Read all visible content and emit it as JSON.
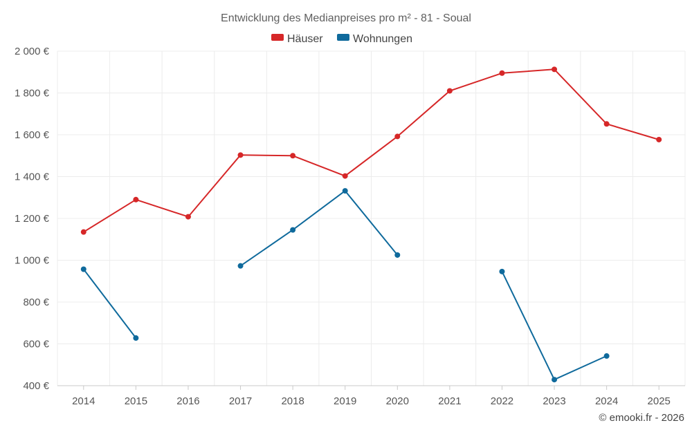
{
  "chart_data": {
    "type": "line",
    "title": "Entwicklung des Medianpreises pro m² - 81 - Soual",
    "xlabel": "",
    "ylabel": "",
    "categories": [
      "2014",
      "2015",
      "2016",
      "2017",
      "2018",
      "2019",
      "2020",
      "2021",
      "2022",
      "2023",
      "2024",
      "2025"
    ],
    "ylim": [
      400,
      2000
    ],
    "y_ticks": [
      400,
      600,
      800,
      1000,
      1200,
      1400,
      1600,
      1800,
      2000
    ],
    "y_tick_labels": [
      "400 €",
      "600 €",
      "800 €",
      "1 000 €",
      "1 200 €",
      "1 400 €",
      "1 600 €",
      "1 800 €",
      "2 000 €"
    ],
    "grid": true,
    "legend_position": "top-center",
    "series": [
      {
        "name": "Häuser",
        "color": "#d62728",
        "values": [
          1135,
          1290,
          1208,
          1503,
          1500,
          1403,
          1592,
          1810,
          1895,
          1913,
          1652,
          1577
        ]
      },
      {
        "name": "Wohnungen",
        "color": "#0f6a9c",
        "values": [
          957,
          628,
          null,
          973,
          1145,
          1332,
          1025,
          null,
          946,
          429,
          542,
          null
        ]
      }
    ]
  },
  "credit": "© emooki.fr - 2026"
}
